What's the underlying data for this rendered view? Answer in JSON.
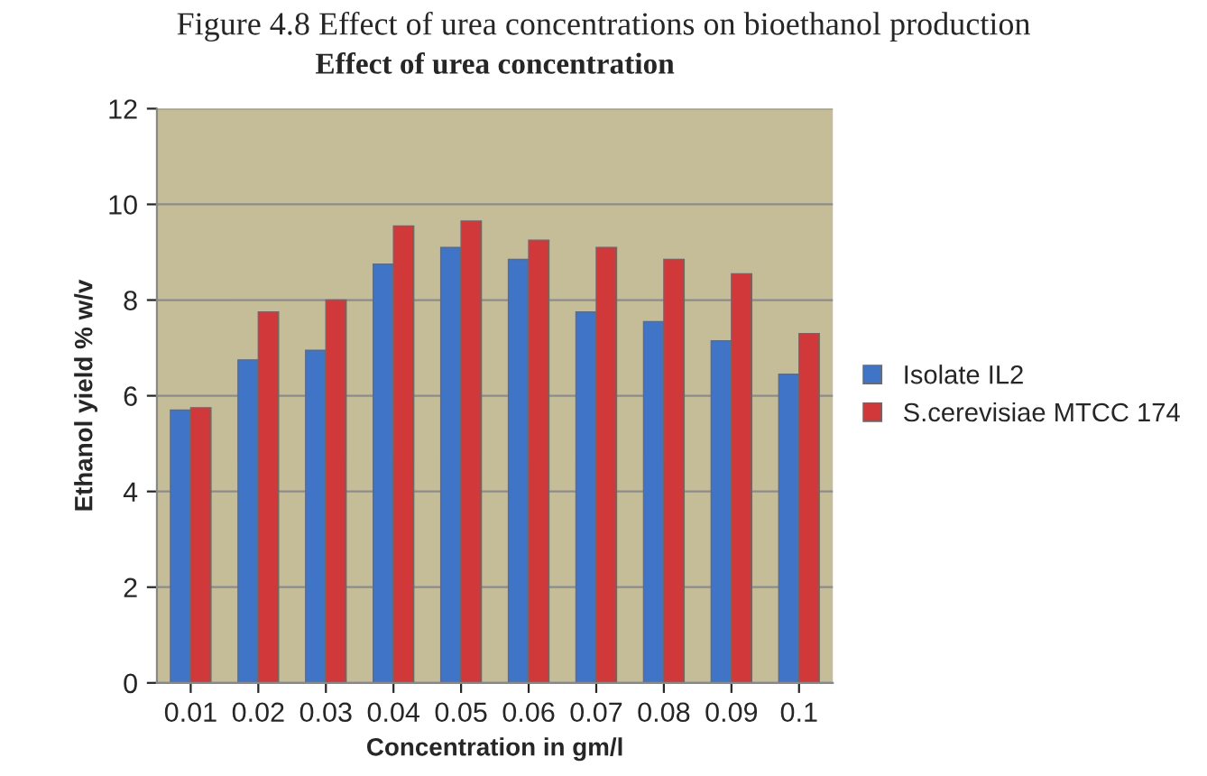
{
  "chart_data": {
    "type": "bar",
    "title": "Effect of urea concentration",
    "annotations": [
      "Figure 4.8 Effect of urea concentrations on bioethanol production"
    ],
    "xlabel": "Concentration in gm/l",
    "ylabel": "Ethanol yield % w/v",
    "categories": [
      "0.01",
      "0.02",
      "0.03",
      "0.04",
      "0.05",
      "0.06",
      "0.07",
      "0.08",
      "0.09",
      "0.1"
    ],
    "series": [
      {
        "name": "Isolate IL2",
        "color": "#3f74c6",
        "values": [
          5.7,
          6.75,
          6.95,
          8.75,
          9.1,
          8.85,
          7.75,
          7.55,
          7.15,
          6.45
        ]
      },
      {
        "name": "S.cerevisiae MTCC 174",
        "color": "#d0383a",
        "values": [
          5.75,
          7.75,
          8.0,
          9.55,
          9.65,
          9.25,
          9.1,
          8.85,
          8.55,
          7.3
        ]
      }
    ],
    "ylim": [
      0,
      12
    ],
    "yticks": [
      0,
      2,
      4,
      6,
      8,
      10,
      12
    ],
    "grid": "y",
    "legend": "right"
  }
}
